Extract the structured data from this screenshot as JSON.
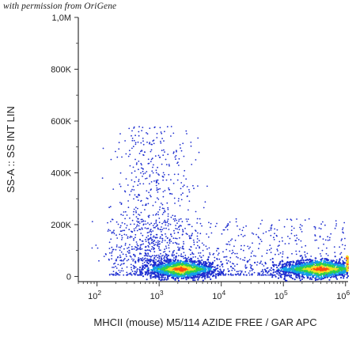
{
  "watermark": "with permission from OriGene",
  "chart_data": {
    "type": "scatter",
    "subtype": "flow-cytometry-density-dot-plot",
    "xlabel": "MHCII (mouse) M5/114 AZIDE FREE / GAR APC",
    "ylabel": "SS-A :: SS INT LIN",
    "x_scale": "log",
    "xlim": [
      50,
      1100000
    ],
    "ylim": [
      -20000,
      1000000
    ],
    "x_ticks": [
      {
        "value": 100,
        "base": "10",
        "exp": "2"
      },
      {
        "value": 1000,
        "base": "10",
        "exp": "3"
      },
      {
        "value": 10000,
        "base": "10",
        "exp": "4"
      },
      {
        "value": 100000,
        "base": "10",
        "exp": "5"
      },
      {
        "value": 1000000,
        "base": "10",
        "exp": "6"
      }
    ],
    "y_ticks": [
      {
        "value": 0,
        "label": "0"
      },
      {
        "value": 200000,
        "label": "200K"
      },
      {
        "value": 400000,
        "label": "400K"
      },
      {
        "value": 600000,
        "label": "600K"
      },
      {
        "value": 800000,
        "label": "800K"
      },
      {
        "value": 1000000,
        "label": "1,0M"
      }
    ],
    "populations": [
      {
        "name_hidden": true,
        "x_center": 2500,
        "y_center": 30000,
        "density": "high",
        "note_color": "red-yellow-green core"
      },
      {
        "name_hidden": true,
        "x_center": 400000,
        "y_center": 30000,
        "density": "high",
        "note_color": "green-yellow core"
      }
    ],
    "sparse_region": {
      "x_range": [
        1000,
        30000
      ],
      "y_range": [
        50000,
        600000
      ],
      "color": "#1f2fd0"
    },
    "density_colors": [
      "#1f2fd0",
      "#13a0e8",
      "#2fd04a",
      "#f0e020",
      "#ff4a10"
    ],
    "grid": false,
    "legend": "none"
  }
}
